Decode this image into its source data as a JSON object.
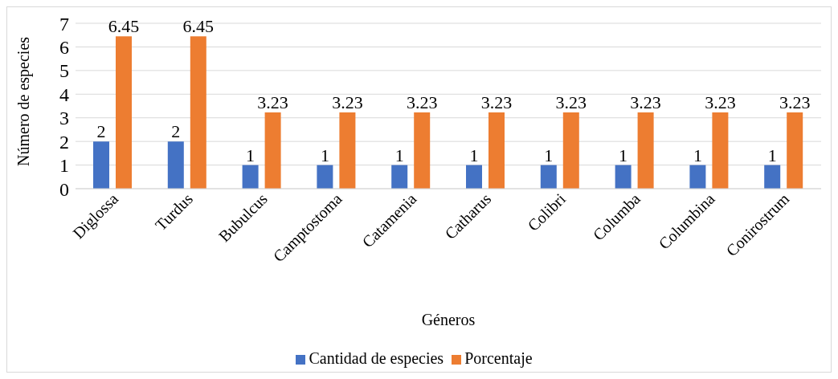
{
  "chart_data": {
    "type": "bar",
    "xlabel": "Géneros",
    "ylabel": "Número de especies",
    "categories": [
      "Diglossa",
      "Turdus",
      "Bubulcus",
      "Camptostoma",
      "Catamenia",
      "Catharus",
      "Colibri",
      "Columba",
      "Columbina",
      "Conirostrum"
    ],
    "series": [
      {
        "name": "Cantidad de especies",
        "color": "#4472c4",
        "values": [
          2,
          2,
          1,
          1,
          1,
          1,
          1,
          1,
          1,
          1
        ]
      },
      {
        "name": "Porcentaje",
        "color": "#ed7d31",
        "values": [
          6.45,
          6.45,
          3.23,
          3.23,
          3.23,
          3.23,
          3.23,
          3.23,
          3.23,
          3.23
        ]
      }
    ],
    "ylim": [
      0,
      7
    ],
    "yticks": [
      0,
      1,
      2,
      3,
      4,
      5,
      6,
      7
    ],
    "grid": "y",
    "legend": "bottom",
    "data_labels": true
  }
}
